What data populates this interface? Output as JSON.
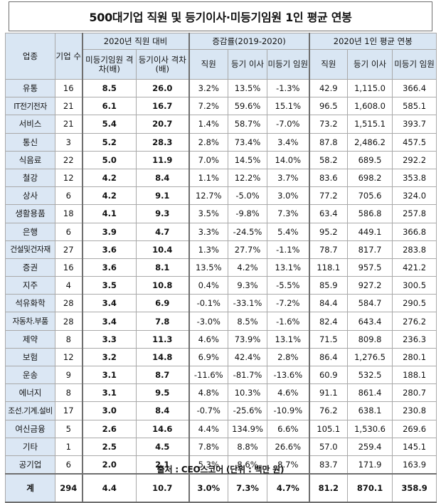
{
  "title": "500대기업 직원 및 등기이사·미등기임원 1인 평균 연봉",
  "header": {
    "industry": "업종",
    "company_count": "기업 수",
    "group1": "2020년 직원 대비",
    "group1_cols": [
      "미등기임원 격차(배)",
      "등기이사 격차(배)"
    ],
    "group2": "증감률(2019-2020)",
    "group2_cols": [
      "직원",
      "등기 이사",
      "미등기 임원"
    ],
    "group3": "2020년 1인 평균 연봉",
    "group3_cols": [
      "직원",
      "등기 이사",
      "미등기 임원"
    ]
  },
  "rows": [
    {
      "name": "유통",
      "count": "16",
      "g1": "8.5",
      "g2": "26.0",
      "c1": "3.2%",
      "c2": "13.5%",
      "c3": "-1.3%",
      "s1": "42.9",
      "s2": "1,115.0",
      "s3": "366.4"
    },
    {
      "name": "IT전기전자",
      "count": "21",
      "g1": "6.1",
      "g2": "16.7",
      "c1": "7.2%",
      "c2": "59.6%",
      "c3": "15.1%",
      "s1": "96.5",
      "s2": "1,608.0",
      "s3": "585.1"
    },
    {
      "name": "서비스",
      "count": "21",
      "g1": "5.4",
      "g2": "20.7",
      "c1": "1.4%",
      "c2": "58.7%",
      "c3": "-7.0%",
      "s1": "73.2",
      "s2": "1,515.1",
      "s3": "393.7"
    },
    {
      "name": "통신",
      "count": "3",
      "g1": "5.2",
      "g2": "28.3",
      "c1": "2.8%",
      "c2": "73.4%",
      "c3": "3.4%",
      "s1": "87.8",
      "s2": "2,486.2",
      "s3": "457.5"
    },
    {
      "name": "식음료",
      "count": "22",
      "g1": "5.0",
      "g2": "11.9",
      "c1": "7.0%",
      "c2": "14.5%",
      "c3": "14.0%",
      "s1": "58.2",
      "s2": "689.5",
      "s3": "292.2"
    },
    {
      "name": "철강",
      "count": "12",
      "g1": "4.2",
      "g2": "8.4",
      "c1": "1.1%",
      "c2": "12.2%",
      "c3": "3.7%",
      "s1": "83.6",
      "s2": "698.2",
      "s3": "353.8"
    },
    {
      "name": "상사",
      "count": "6",
      "g1": "4.2",
      "g2": "9.1",
      "c1": "12.7%",
      "c2": "-5.0%",
      "c3": "3.0%",
      "s1": "77.2",
      "s2": "705.6",
      "s3": "324.0"
    },
    {
      "name": "생활용품",
      "count": "18",
      "g1": "4.1",
      "g2": "9.3",
      "c1": "3.5%",
      "c2": "-9.8%",
      "c3": "7.3%",
      "s1": "63.4",
      "s2": "586.8",
      "s3": "257.8"
    },
    {
      "name": "은행",
      "count": "6",
      "g1": "3.9",
      "g2": "4.7",
      "c1": "3.3%",
      "c2": "-24.5%",
      "c3": "5.4%",
      "s1": "95.2",
      "s2": "449.1",
      "s3": "366.8"
    },
    {
      "name": "건설및건자재",
      "count": "27",
      "g1": "3.6",
      "g2": "10.4",
      "c1": "1.3%",
      "c2": "27.7%",
      "c3": "-1.1%",
      "s1": "78.7",
      "s2": "817.7",
      "s3": "283.8"
    },
    {
      "name": "증권",
      "count": "16",
      "g1": "3.6",
      "g2": "8.1",
      "c1": "13.5%",
      "c2": "4.2%",
      "c3": "13.1%",
      "s1": "118.1",
      "s2": "957.5",
      "s3": "421.2"
    },
    {
      "name": "지주",
      "count": "4",
      "g1": "3.5",
      "g2": "10.8",
      "c1": "0.4%",
      "c2": "9.3%",
      "c3": "-5.5%",
      "s1": "85.9",
      "s2": "927.2",
      "s3": "300.5"
    },
    {
      "name": "석유화학",
      "count": "28",
      "g1": "3.4",
      "g2": "6.9",
      "c1": "-0.1%",
      "c2": "-33.1%",
      "c3": "-7.2%",
      "s1": "84.4",
      "s2": "584.7",
      "s3": "290.5"
    },
    {
      "name": "자동차.부품",
      "count": "28",
      "g1": "3.4",
      "g2": "7.8",
      "c1": "-3.0%",
      "c2": "8.5%",
      "c3": "-1.6%",
      "s1": "82.4",
      "s2": "643.4",
      "s3": "276.2"
    },
    {
      "name": "제약",
      "count": "8",
      "g1": "3.3",
      "g2": "11.3",
      "c1": "4.6%",
      "c2": "73.9%",
      "c3": "13.1%",
      "s1": "71.5",
      "s2": "809.8",
      "s3": "236.3"
    },
    {
      "name": "보험",
      "count": "12",
      "g1": "3.2",
      "g2": "14.8",
      "c1": "6.9%",
      "c2": "42.4%",
      "c3": "2.8%",
      "s1": "86.4",
      "s2": "1,276.5",
      "s3": "280.1"
    },
    {
      "name": "운송",
      "count": "9",
      "g1": "3.1",
      "g2": "8.7",
      "c1": "-11.6%",
      "c2": "-81.7%",
      "c3": "-13.6%",
      "s1": "60.9",
      "s2": "532.5",
      "s3": "188.1"
    },
    {
      "name": "에너지",
      "count": "8",
      "g1": "3.1",
      "g2": "9.5",
      "c1": "4.8%",
      "c2": "10.3%",
      "c3": "4.6%",
      "s1": "91.1",
      "s2": "861.4",
      "s3": "280.7"
    },
    {
      "name": "조선.기계.설비",
      "count": "17",
      "g1": "3.0",
      "g2": "8.4",
      "c1": "-0.7%",
      "c2": "-25.6%",
      "c3": "-10.9%",
      "s1": "76.2",
      "s2": "638.1",
      "s3": "230.8"
    },
    {
      "name": "여신금융",
      "count": "5",
      "g1": "2.6",
      "g2": "14.6",
      "c1": "4.4%",
      "c2": "134.9%",
      "c3": "6.6%",
      "s1": "105.1",
      "s2": "1,530.6",
      "s3": "269.6"
    },
    {
      "name": "기타",
      "count": "1",
      "g1": "2.5",
      "g2": "4.5",
      "c1": "7.8%",
      "c2": "8.8%",
      "c3": "26.6%",
      "s1": "57.0",
      "s2": "259.4",
      "s3": "145.1"
    },
    {
      "name": "공기업",
      "count": "6",
      "g1": "2.0",
      "g2": "2.1",
      "c1": "5.3%",
      "c2": "8.6%",
      "c3": "8.7%",
      "s1": "83.7",
      "s2": "171.9",
      "s3": "163.9"
    }
  ],
  "total": {
    "name": "계",
    "count": "294",
    "g1": "4.4",
    "g2": "10.7",
    "c1": "3.0%",
    "c2": "7.3%",
    "c3": "4.7%",
    "s1": "81.2",
    "s2": "870.1",
    "s3": "358.9"
  },
  "source": "출처 : CEO스코어 (단위 : 백만 원)"
}
